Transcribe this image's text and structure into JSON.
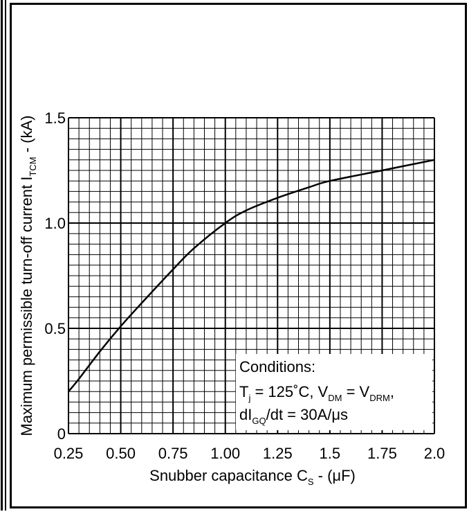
{
  "chart_data": {
    "type": "line",
    "xlabel": "Snubber capacitance C",
    "xlabel_sub": "S",
    "xlabel_unit": " - (μF)",
    "ylabel": "Maximum permissible turn-off current I",
    "ylabel_sub": "TCM",
    "ylabel_unit": " - (kA)",
    "xlim": [
      0.25,
      2.0
    ],
    "ylim": [
      0,
      1.5
    ],
    "x_ticks": [
      0.25,
      0.5,
      0.75,
      1.0,
      1.25,
      1.5,
      1.75,
      2.0
    ],
    "x_tick_labels": [
      "0.25",
      "0.50",
      "0.75",
      "1.00",
      "1.25",
      "1.5",
      "1.75",
      "2.0"
    ],
    "y_ticks": [
      0,
      0.5,
      1.0,
      1.5
    ],
    "y_tick_labels": [
      "0",
      "0.5",
      "1.0",
      "1.5"
    ],
    "grid": true,
    "series": [
      {
        "x": [
          0.25,
          0.3,
          0.4,
          0.5,
          0.6,
          0.75,
          0.85,
          1.0,
          1.1,
          1.25,
          1.4,
          1.5,
          1.75,
          2.0
        ],
        "y": [
          0.2,
          0.26,
          0.39,
          0.51,
          0.62,
          0.78,
          0.88,
          1.0,
          1.06,
          1.12,
          1.17,
          1.2,
          1.25,
          1.3
        ]
      }
    ],
    "annotation": {
      "line1": "Conditions:",
      "line2_pre": "T",
      "line2_sub1": "j",
      "line2_mid": " = 125˚C, V",
      "line2_sub2": "DM",
      "line2_eq": " = V",
      "line2_sub3": "DRM",
      "line2_end": ",",
      "line3_pre": "dI",
      "line3_sub": "GQ",
      "line3_end": "/dt = 30A/μs"
    }
  }
}
